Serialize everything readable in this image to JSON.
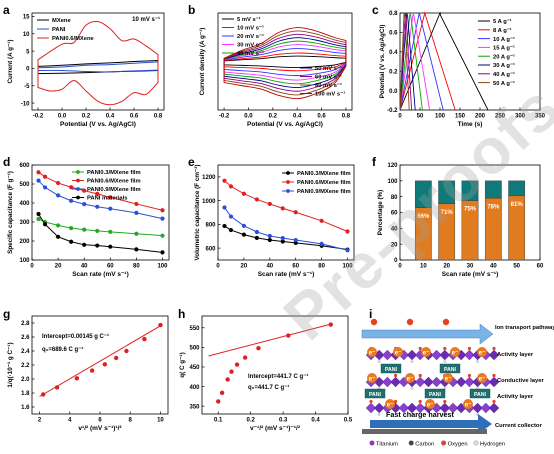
{
  "figure": {
    "watermark": "Pre-proofs"
  },
  "chart_data": [
    {
      "panel": "a",
      "type": "line",
      "xlabel": "Potential (V vs. Ag/AgCl)",
      "ylabel": "Current (A g⁻¹)",
      "xlim": [
        -0.25,
        0.85
      ],
      "ylim": [
        -12,
        16
      ],
      "xticks": [
        -0.2,
        0.0,
        0.2,
        0.4,
        0.6,
        0.8
      ],
      "yticks": [
        -10,
        -5,
        0,
        5,
        10,
        15
      ],
      "legend_position": "top-left",
      "annotation": "10 mV s⁻¹",
      "series": [
        {
          "name": "MXene",
          "color": "#000000",
          "upper": [
            [
              -0.2,
              0.6
            ],
            [
              0,
              0.9
            ],
            [
              0.2,
              1.3
            ],
            [
              0.4,
              1.6
            ],
            [
              0.6,
              2.0
            ],
            [
              0.8,
              2.3
            ]
          ],
          "lower": [
            [
              -0.2,
              -1.5
            ],
            [
              0,
              -1.4
            ],
            [
              0.2,
              -1.2
            ],
            [
              0.4,
              -1.0
            ],
            [
              0.6,
              -0.8
            ],
            [
              0.8,
              -0.6
            ]
          ]
        },
        {
          "name": "PANI",
          "color": "#2b4fd6",
          "upper": [
            [
              -0.2,
              0.2
            ],
            [
              0,
              0.4
            ],
            [
              0.2,
              0.9
            ],
            [
              0.4,
              1.1
            ],
            [
              0.6,
              1.5
            ],
            [
              0.8,
              1.9
            ]
          ],
          "lower": [
            [
              -0.2,
              -0.6
            ],
            [
              0,
              -0.6
            ],
            [
              0.2,
              -0.9
            ],
            [
              0.4,
              -1.0
            ],
            [
              0.6,
              -0.7
            ],
            [
              0.8,
              -0.5
            ]
          ]
        },
        {
          "name": "PANI0.6/MXene",
          "color": "#e02020",
          "upper": [
            [
              -0.2,
              2.5
            ],
            [
              0.0,
              7.0
            ],
            [
              0.1,
              7.5
            ],
            [
              0.2,
              12.5
            ],
            [
              0.3,
              13.5
            ],
            [
              0.4,
              11.5
            ],
            [
              0.5,
              8.0
            ],
            [
              0.6,
              8.5
            ],
            [
              0.7,
              6.5
            ],
            [
              0.8,
              4.0
            ]
          ],
          "lower": [
            [
              -0.2,
              -5.5
            ],
            [
              -0.1,
              -6.5
            ],
            [
              0.0,
              -6.0
            ],
            [
              0.1,
              -3.5
            ],
            [
              0.2,
              -6.5
            ],
            [
              0.3,
              -9.5
            ],
            [
              0.4,
              -10.5
            ],
            [
              0.5,
              -9.5
            ],
            [
              0.6,
              -7.0
            ],
            [
              0.7,
              -7.5
            ],
            [
              0.8,
              -4.0
            ]
          ]
        }
      ]
    },
    {
      "panel": "b",
      "type": "line",
      "xlabel": "Potential (V vs. Ag/AgCl)",
      "ylabel": "Current density (A g⁻¹)",
      "xlim": [
        -0.25,
        0.85
      ],
      "ylim": [
        -60,
        60
      ],
      "xticks": [
        -0.2,
        0.0,
        0.2,
        0.4,
        0.6,
        0.8
      ],
      "series": [
        {
          "name": "5 mV s⁻¹",
          "color": "#000000",
          "scale": 0.16
        },
        {
          "name": "10 mV s⁻¹",
          "color": "#ff0000",
          "scale": 0.25
        },
        {
          "name": "20 mV s⁻¹",
          "color": "#3333ff",
          "scale": 0.38
        },
        {
          "name": "30 mV s⁻¹",
          "color": "#ff33ff",
          "scale": 0.5
        },
        {
          "name": "40 mV s⁻¹",
          "color": "#00aa00",
          "scale": 0.6
        },
        {
          "name": "50 mV s⁻¹",
          "color": "#000080",
          "scale": 0.7
        },
        {
          "name": "60 mV s⁻¹",
          "color": "#8b008b",
          "scale": 0.8
        },
        {
          "name": "80 mV s⁻¹",
          "color": "#8b4513",
          "scale": 0.9
        },
        {
          "name": "100 mV s⁻¹",
          "color": "#c00000",
          "scale": 1.0
        }
      ]
    },
    {
      "panel": "c",
      "type": "line",
      "xlabel": "Time (s)",
      "ylabel": "Potential (V vs. Ag/AgCl)",
      "xlim": [
        0,
        350
      ],
      "ylim": [
        -0.2,
        0.8
      ],
      "xticks": [
        0,
        50,
        100,
        150,
        200,
        250,
        300,
        350
      ],
      "yticks": [
        -0.2,
        0.0,
        0.2,
        0.4,
        0.6,
        0.8
      ],
      "series": [
        {
          "name": "5 A g⁻¹",
          "color": "#000000",
          "charge_end": 100,
          "discharge_end": 220
        },
        {
          "name": "8 A g⁻¹",
          "color": "#ff0000",
          "charge_end": 62,
          "discharge_end": 138
        },
        {
          "name": "10 A g⁻¹",
          "color": "#3333ff",
          "charge_end": 48,
          "discharge_end": 108
        },
        {
          "name": "15 A g⁻¹",
          "color": "#ff33ff",
          "charge_end": 33,
          "discharge_end": 74
        },
        {
          "name": "20 A g⁻¹",
          "color": "#00aa00",
          "charge_end": 25,
          "discharge_end": 56
        },
        {
          "name": "30 A g⁻¹",
          "color": "#000080",
          "charge_end": 17,
          "discharge_end": 38
        },
        {
          "name": "40 A g⁻¹",
          "color": "#8b008b",
          "charge_end": 13,
          "discharge_end": 29
        },
        {
          "name": "50 A g⁻¹",
          "color": "#8b4513",
          "charge_end": 10,
          "discharge_end": 23
        }
      ]
    },
    {
      "panel": "d",
      "type": "line",
      "xlabel": "Scan rate (mV s⁻¹)",
      "ylabel": "Specific capacitance (F g⁻¹)",
      "xlim": [
        0,
        105
      ],
      "ylim": [
        100,
        600
      ],
      "xticks": [
        0,
        20,
        40,
        60,
        80,
        100
      ],
      "yticks": [
        100,
        200,
        300,
        400,
        500,
        600
      ],
      "legend_position": "top-right",
      "series": [
        {
          "name": "PANI0.3/MXene film",
          "color": "#22aa22",
          "values": [
            [
              5,
              316
            ],
            [
              10,
              300
            ],
            [
              20,
              282
            ],
            [
              30,
              268
            ],
            [
              40,
              260
            ],
            [
              50,
              253
            ],
            [
              60,
              248
            ],
            [
              80,
              238
            ],
            [
              100,
              228
            ]
          ]
        },
        {
          "name": "PANI0.6/MXene film",
          "color": "#e02020",
          "values": [
            [
              5,
              562
            ],
            [
              10,
              538
            ],
            [
              20,
              505
            ],
            [
              30,
              483
            ],
            [
              40,
              465
            ],
            [
              50,
              448
            ],
            [
              60,
              430
            ],
            [
              80,
              395
            ],
            [
              100,
              362
            ]
          ]
        },
        {
          "name": "PANI0.9/MXene film",
          "color": "#2b4fd6",
          "values": [
            [
              5,
              518
            ],
            [
              10,
              482
            ],
            [
              20,
              440
            ],
            [
              30,
              412
            ],
            [
              40,
              394
            ],
            [
              50,
              380
            ],
            [
              60,
              370
            ],
            [
              80,
              348
            ],
            [
              100,
              318
            ]
          ]
        },
        {
          "name": "PANI materials",
          "color": "#000000",
          "values": [
            [
              5,
              342
            ],
            [
              10,
              288
            ],
            [
              20,
              222
            ],
            [
              30,
              196
            ],
            [
              40,
              180
            ],
            [
              50,
              176
            ],
            [
              60,
              170
            ],
            [
              80,
              156
            ],
            [
              100,
              140
            ]
          ]
        }
      ]
    },
    {
      "panel": "e",
      "type": "line",
      "xlabel": "Scan rate (mV s⁻¹)",
      "ylabel": "Volumetric capacitance (F cm⁻³)",
      "xlim": [
        0,
        105
      ],
      "ylim": [
        500,
        1300
      ],
      "xticks": [
        0,
        20,
        40,
        60,
        80,
        100
      ],
      "yticks": [
        600,
        800,
        1000,
        1200
      ],
      "legend_position": "top-right",
      "series": [
        {
          "name": "PANI0.3/MXene film",
          "color": "#000000",
          "values": [
            [
              5,
              786
            ],
            [
              10,
              752
            ],
            [
              20,
              714
            ],
            [
              30,
              686
            ],
            [
              40,
              668
            ],
            [
              50,
              656
            ],
            [
              60,
              644
            ],
            [
              80,
              620
            ],
            [
              100,
              588
            ]
          ]
        },
        {
          "name": "PANI0.6/MXene film",
          "color": "#e02020",
          "values": [
            [
              5,
              1168
            ],
            [
              10,
              1120
            ],
            [
              20,
              1058
            ],
            [
              30,
              1010
            ],
            [
              40,
              972
            ],
            [
              50,
              935
            ],
            [
              60,
              902
            ],
            [
              80,
              830
            ],
            [
              100,
              740
            ]
          ]
        },
        {
          "name": "PANI0.9/MXene film",
          "color": "#2b4fd6",
          "values": [
            [
              5,
              942
            ],
            [
              10,
              866
            ],
            [
              20,
              788
            ],
            [
              30,
              736
            ],
            [
              40,
              702
            ],
            [
              50,
              684
            ],
            [
              60,
              668
            ],
            [
              80,
              636
            ],
            [
              100,
              582
            ]
          ]
        }
      ]
    },
    {
      "panel": "f",
      "type": "bar",
      "xlabel": "Scan rate (mV s⁻¹)",
      "ylabel": "Percentage (%)",
      "xlim": [
        0,
        60
      ],
      "ylim": [
        0,
        120
      ],
      "xticks": [
        0,
        10,
        20,
        30,
        40,
        50,
        60
      ],
      "yticks": [
        0,
        20,
        40,
        60,
        80,
        100,
        120
      ],
      "categories": [
        10,
        20,
        30,
        40,
        50
      ],
      "labels": [
        "66%",
        "71%",
        "75%",
        "78%",
        "81%"
      ],
      "capacitive": [
        66,
        71,
        75,
        78,
        81
      ],
      "colors": {
        "capacitive": "#e07b1f",
        "diffusion": "#107a7a"
      }
    },
    {
      "panel": "g",
      "type": "scatter",
      "xlabel": "v¹/² (mV s⁻¹)¹/²",
      "ylabel": "1/q(·10⁻³ g C⁻¹)",
      "xlim": [
        1.5,
        10.5
      ],
      "ylim": [
        1.5,
        2.9
      ],
      "xticks": [
        2,
        4,
        6,
        8,
        10
      ],
      "yticks": [
        1.6,
        1.8,
        2.0,
        2.2,
        2.4,
        2.6,
        2.8
      ],
      "annotation_1": "Intercept=0.00145 g C⁻¹",
      "annotation_2": "q₀=689.6 C g⁻¹",
      "points": [
        [
          2.24,
          1.78
        ],
        [
          3.16,
          1.88
        ],
        [
          4.47,
          2.01
        ],
        [
          5.48,
          2.12
        ],
        [
          6.32,
          2.21
        ],
        [
          7.07,
          2.3
        ],
        [
          7.75,
          2.4
        ],
        [
          8.94,
          2.57
        ],
        [
          10.0,
          2.77
        ]
      ],
      "fit": [
        [
          2.0,
          1.75
        ],
        [
          10.0,
          2.76
        ]
      ]
    },
    {
      "panel": "h",
      "type": "scatter",
      "xlabel": "v⁻¹/² (mV s⁻¹)⁻¹/²",
      "ylabel": "q( C g⁻¹)",
      "xlim": [
        0.05,
        0.5
      ],
      "ylim": [
        330,
        580
      ],
      "xticks": [
        0.1,
        0.2,
        0.3,
        0.4,
        0.5
      ],
      "yticks": [
        350,
        400,
        450,
        500,
        550
      ],
      "annotation_1": "Intercept=441.7 C g⁻¹",
      "annotation_2": "q₀=441.7 C g⁻¹",
      "points": [
        [
          0.1,
          362
        ],
        [
          0.112,
          384
        ],
        [
          0.129,
          418
        ],
        [
          0.141,
          438
        ],
        [
          0.158,
          456
        ],
        [
          0.183,
          474
        ],
        [
          0.224,
          498
        ],
        [
          0.316,
          530
        ],
        [
          0.447,
          558
        ]
      ],
      "fit": [
        [
          0.07,
          478
        ],
        [
          0.45,
          560
        ]
      ]
    }
  ],
  "schematic": {
    "panel": "i",
    "top_label": "Ion transport pathway",
    "layer_labels": [
      "Activity layer",
      "Conductive layer",
      "Activity layer"
    ],
    "bottom_label": "Current collector",
    "arrow_label": "Fast charge harvest",
    "node_label": "PANI",
    "electron_label": "e⁻",
    "legend": [
      {
        "name": "Titanium",
        "color": "#9b30c9"
      },
      {
        "name": "Carbon",
        "color": "#444444"
      },
      {
        "name": "Oxygen",
        "color": "#e2442a"
      },
      {
        "name": "Hydrogen",
        "color": "#d8d8d8"
      }
    ]
  }
}
